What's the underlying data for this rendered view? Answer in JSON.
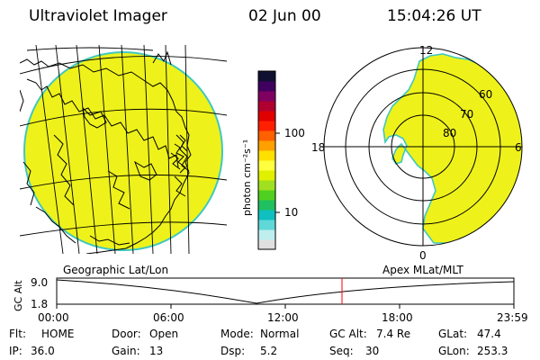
{
  "header": {
    "title": "Ultraviolet Imager",
    "date": "02 Jun 00",
    "time": "15:04:26 UT"
  },
  "colorbar": {
    "unit_label": "photon cm⁻²s⁻¹",
    "ticks": [
      "100",
      "10"
    ],
    "colors": [
      "#e0e0e0",
      "#bfeeee",
      "#60d8d8",
      "#10c0c0",
      "#20c060",
      "#50d020",
      "#a0e020",
      "#e0f000",
      "#ffff40",
      "#ffe000",
      "#ffa000",
      "#ff6000",
      "#ff2000",
      "#e00000",
      "#b00030",
      "#800060",
      "#400060",
      "#101030"
    ]
  },
  "geo_map": {
    "label": "Geographic Lat/Lon",
    "fill_color": "#eef21a",
    "edge_color": "#40c8c0"
  },
  "polar_map": {
    "label": "Apex MLat/MLT",
    "mlt_labels": [
      "12",
      "18",
      "6",
      "0"
    ],
    "lat_labels": [
      "60",
      "70",
      "80"
    ]
  },
  "altitude_plot": {
    "y_label": "GC Alt",
    "y_ticks": [
      "9.0",
      "1.8"
    ],
    "x_ticks": [
      "00:00",
      "06:00",
      "12:00",
      "18:00",
      "23:59"
    ],
    "marker_color": "#ff0000"
  },
  "info": {
    "flt_label": "Flt:",
    "flt_value": "HOME",
    "ip_label": "IP:",
    "ip_value": "36.0",
    "door_label": "Door:",
    "door_value": "Open",
    "gain_label": "Gain:",
    "gain_value": "13",
    "mode_label": "Mode:",
    "mode_value": "Normal",
    "dsp_label": "Dsp:",
    "dsp_value": "5.2",
    "gcalt_label": "GC Alt:",
    "gcalt_value": "7.4 Re",
    "seq_label": "Seq:",
    "seq_value": "30",
    "glat_label": "GLat:",
    "glat_value": "47.4",
    "glon_label": "GLon:",
    "glon_value": "253.3"
  }
}
